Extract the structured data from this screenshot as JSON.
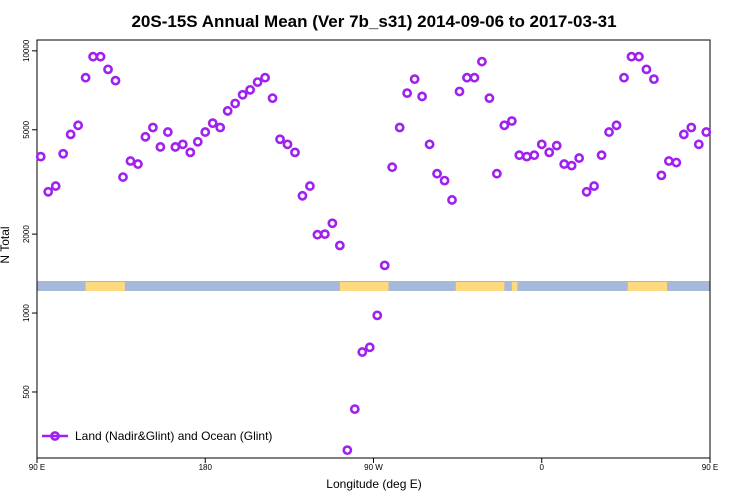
{
  "chart_data": {
    "type": "scatter",
    "title": "20S-15S Annual Mean (Ver 7b_s31)   2014-09-06 to 2017-03-31",
    "xlabel": "Longitude (deg E)",
    "ylabel": "N Total",
    "y_scale": "log",
    "xlim": [
      90,
      450
    ],
    "ylim": [
      280,
      11000
    ],
    "x_ticks": [
      {
        "value": 90,
        "label": "90 E"
      },
      {
        "value": 180,
        "label": "180"
      },
      {
        "value": 270,
        "label": "90 W"
      },
      {
        "value": 360,
        "label": "0"
      },
      {
        "value": 450,
        "label": "90 E"
      },
      {
        "value": 540,
        "label": "180"
      }
    ],
    "y_ticks": [
      500,
      1000,
      2000,
      5000,
      10000
    ],
    "grid": false,
    "legend": {
      "position": "bottom-left",
      "label": "Land (Nadir&Glint) and Ocean (Glint)"
    },
    "marker_color": "#a020f0",
    "surface_strip": {
      "ocean_color": "#a5b9d9",
      "land_color": "#ffd980"
    },
    "series": [
      {
        "name": "Land (Nadir&Glint) and Ocean (Glint)",
        "points": [
          [
            92,
            3950
          ],
          [
            96,
            2900
          ],
          [
            100,
            3050
          ],
          [
            104,
            4050
          ],
          [
            108,
            4800
          ],
          [
            112,
            5200
          ],
          [
            116,
            7900
          ],
          [
            120,
            9500
          ],
          [
            124,
            9500
          ],
          [
            128,
            8500
          ],
          [
            132,
            7700
          ],
          [
            136,
            3300
          ],
          [
            140,
            3800
          ],
          [
            144,
            3700
          ],
          [
            148,
            4700
          ],
          [
            152,
            5100
          ],
          [
            156,
            4300
          ],
          [
            160,
            4900
          ],
          [
            164,
            4300
          ],
          [
            168,
            4400
          ],
          [
            172,
            4100
          ],
          [
            176,
            4500
          ],
          [
            180,
            4900
          ],
          [
            184,
            5300
          ],
          [
            188,
            5100
          ],
          [
            192,
            5900
          ],
          [
            196,
            6300
          ],
          [
            200,
            6800
          ],
          [
            204,
            7100
          ],
          [
            208,
            7600
          ],
          [
            212,
            7900
          ],
          [
            216,
            6600
          ],
          [
            220,
            4600
          ],
          [
            224,
            4400
          ],
          [
            228,
            4100
          ],
          [
            232,
            2800
          ],
          [
            236,
            3050
          ],
          [
            240,
            1990
          ],
          [
            244,
            2000
          ],
          [
            248,
            2200
          ],
          [
            252,
            1810
          ],
          [
            256,
            300
          ],
          [
            260,
            430
          ],
          [
            264,
            710
          ],
          [
            268,
            740
          ],
          [
            272,
            980
          ],
          [
            276,
            1520
          ],
          [
            280,
            3600
          ],
          [
            284,
            5100
          ],
          [
            288,
            6900
          ],
          [
            292,
            7800
          ],
          [
            296,
            6700
          ],
          [
            300,
            4400
          ],
          [
            304,
            3400
          ],
          [
            308,
            3200
          ],
          [
            312,
            2700
          ],
          [
            316,
            7000
          ],
          [
            320,
            7900
          ],
          [
            324,
            7900
          ],
          [
            328,
            9100
          ],
          [
            332,
            6600
          ],
          [
            336,
            3400
          ],
          [
            340,
            5200
          ],
          [
            344,
            5400
          ],
          [
            348,
            4000
          ],
          [
            352,
            3950
          ],
          [
            356,
            4000
          ],
          [
            360,
            4400
          ],
          [
            364,
            4100
          ],
          [
            368,
            4350
          ],
          [
            372,
            3700
          ],
          [
            376,
            3650
          ],
          [
            380,
            3900
          ],
          [
            384,
            2900
          ],
          [
            388,
            3050
          ],
          [
            392,
            4000
          ],
          [
            396,
            4900
          ],
          [
            400,
            5200
          ],
          [
            404,
            7900
          ],
          [
            408,
            9500
          ],
          [
            412,
            9500
          ],
          [
            416,
            8500
          ],
          [
            420,
            7800
          ],
          [
            424,
            3350
          ],
          [
            428,
            3800
          ],
          [
            432,
            3750
          ],
          [
            436,
            4800
          ],
          [
            440,
            5100
          ],
          [
            444,
            4400
          ],
          [
            448,
            4900
          ]
        ]
      }
    ]
  }
}
